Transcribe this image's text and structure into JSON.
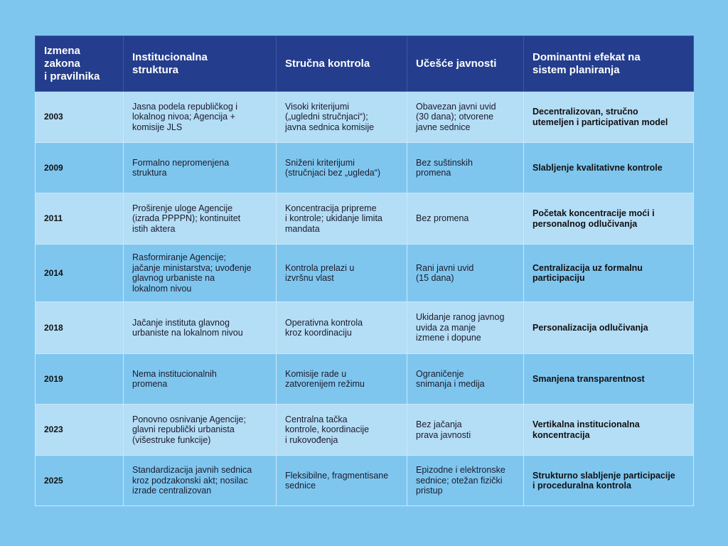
{
  "table": {
    "headers": [
      "Izmena\nzakona\ni pravilnika",
      "Institucionalna\nstruktura",
      "Stručna kontrola",
      "Učešće javnosti",
      "Dominantni efekat na\nsistem planiranja"
    ],
    "rows": [
      [
        "2003",
        "Jasna podela republičkog i\nlokalnog nivoa; Agencija +\nkomisije JLS",
        "Visoki kriterijumi\n(„ugledni stručnjaci“);\njavna sednica komisije",
        "Obavezan javni uvid\n(30 dana); otvorene\njavne sednice",
        "Decentralizovan, stručno\nutemeljen i participativan model"
      ],
      [
        "2009",
        "Formalno nepromenjena\nstruktura",
        "Sniženi kriterijumi\n(stručnjaci bez „ugleda“)",
        "Bez suštinskih\npromena",
        "Slabljenje kvalitativne kontrole"
      ],
      [
        "2011",
        "Proširenje uloge Agencije\n(izrada PPPPN); kontinuitet\nistih aktera",
        "Koncentracija pripreme\ni kontrole; ukidanje limita\nmandata",
        "Bez promena",
        "Početak koncentracije moći i\npersonalnog odlučivanja"
      ],
      [
        "2014",
        "Rasformiranje Agencije;\njačanje ministarstva; uvođenje\nglavnog urbaniste na\nlokalnom nivou",
        "Kontrola prelazi u\nizvršnu vlast",
        "Rani javni uvid\n(15 dana)",
        "Centralizacija uz formalnu\nparticipaciju"
      ],
      [
        "2018",
        "Jačanje instituta glavnog\nurbaniste na lokalnom nivou",
        "Operativna kontrola\nkroz koordinaciju",
        "Ukidanje ranog javnog\nuvida za manje\nizmene i dopune",
        "Personalizacija odlučivanja"
      ],
      [
        "2019",
        "Nema institucionalnih\npromena",
        "Komisije rade u\nzatvorenijem režimu",
        "Ograničenje\nsnimanja i medija",
        "Smanjena transparentnost"
      ],
      [
        "2023",
        "Ponovno osnivanje Agencije;\nglavni republički urbanista\n(višestruke funkcije)",
        "Centralna tačka\nkontrole, koordinacije\ni rukovođenja",
        "Bez jačanja\nprava javnosti",
        "Vertikalna institucionalna\nkoncentracija"
      ],
      [
        "2025",
        "Standardizacija javnih sednica\nkroz podzakonski akt; nosilac\nizrade centralizovan",
        "Fleksibilne, fragmentisane\nsednice",
        "Epizodne i elektronske\nsednice; otežan fizički\npristup",
        "Strukturno slabljenje participacije\ni proceduralna kontrola"
      ]
    ]
  },
  "colors": {
    "background": "#7fc6ef",
    "header": "#243d8d",
    "row_light": "#b4ddf6",
    "row_dark": "#7fc6ef"
  }
}
